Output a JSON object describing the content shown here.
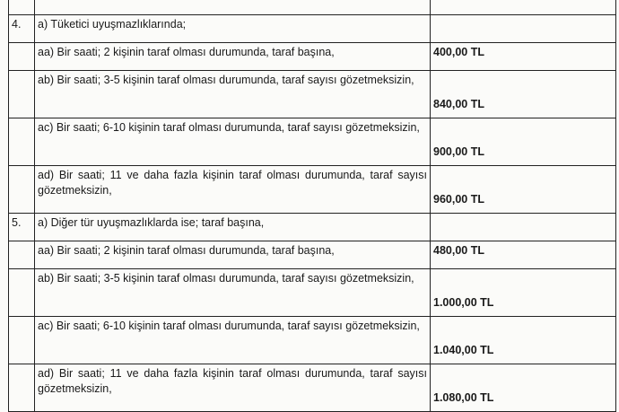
{
  "rows": [
    {
      "num": "4.",
      "text": "a) Tüketici uyuşmazlıklarında;",
      "fee": ""
    },
    {
      "num": "",
      "text": "aa) Bir saati; 2 kişinin taraf olması durumunda, taraf başına,",
      "fee": "400,00 TL"
    },
    {
      "num": "",
      "text": "ab) Bir saati; 3-5 kişinin taraf olması durumunda, taraf sayısı gözetmeksizin,",
      "fee": "840,00 TL"
    },
    {
      "num": "",
      "text": "ac) Bir saati; 6-10 kişinin taraf olması durumunda, taraf sayısı gözetmeksizin,",
      "fee": "900,00 TL"
    },
    {
      "num": "",
      "text": "ad) Bir saati; 11 ve daha fazla kişinin taraf olması durumunda, taraf sayısı gözetmeksizin,",
      "fee": "960,00 TL"
    },
    {
      "num": "5.",
      "text": "a) Diğer tür uyuşmazlıklarda ise; taraf başına,",
      "fee": ""
    },
    {
      "num": "",
      "text": "aa) Bir saati; 2 kişinin taraf olması durumunda, taraf başına,",
      "fee": "480,00 TL"
    },
    {
      "num": "",
      "text": "ab) Bir saati; 3-5 kişinin taraf olması durumunda, taraf sayısı gözetmeksizin,",
      "fee": "1.000,00 TL"
    },
    {
      "num": "",
      "text": "ac) Bir saati; 6-10 kişinin taraf olması durumunda, taraf sayısı gözetmeksizin,",
      "fee": "1.040,00 TL"
    },
    {
      "num": "",
      "text": "ad) Bir saati; 11 ve daha fazla kişinin taraf olması durumunda, taraf sayısı gözetmeksizin,",
      "fee": "1.080,00 TL"
    }
  ]
}
